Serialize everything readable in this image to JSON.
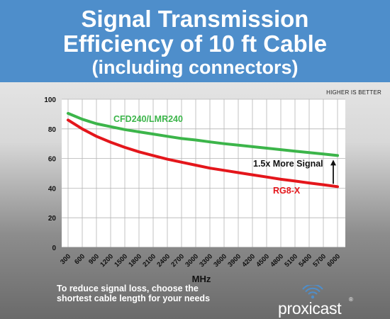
{
  "header": {
    "title_line1": "Signal Transmission",
    "title_line2": "Efficiency of 10 ft Cable",
    "subtitle": "(including connectors)"
  },
  "note": "HIGHER IS BETTER",
  "colors": {
    "header_bg": "#4e8ecb",
    "cfd240": "#3cb54a",
    "rg8x": "#e4161b",
    "grid": "#b4b4b4",
    "text": "#111111"
  },
  "chart_data": {
    "type": "line",
    "title": "Signal Transmission Efficiency of 10 ft Cable",
    "xlabel": "MHz",
    "ylabel": "",
    "x": [
      300,
      600,
      900,
      1200,
      1500,
      1800,
      2100,
      2400,
      2700,
      3000,
      3300,
      3600,
      3900,
      4200,
      4500,
      4800,
      5100,
      5400,
      5700,
      6000
    ],
    "ylim": [
      0,
      100
    ],
    "yticks": [
      0,
      20,
      40,
      60,
      80,
      100
    ],
    "grid": true,
    "series": [
      {
        "name": "CFD240/LMR240",
        "color": "#3cb54a",
        "values": [
          90.5,
          86.5,
          83.5,
          81.5,
          79.5,
          78,
          76.5,
          75,
          73.5,
          72.5,
          71.2,
          70,
          69,
          68,
          67,
          66,
          65,
          64,
          63,
          62
        ]
      },
      {
        "name": "RG8-X",
        "color": "#e4161b",
        "values": [
          86,
          80,
          75,
          71,
          67.5,
          64.5,
          62,
          59.5,
          57.5,
          55.5,
          53.5,
          52,
          50.5,
          49,
          47.5,
          46,
          44.8,
          43.5,
          42.3,
          41
        ]
      }
    ],
    "annotations": [
      {
        "text": "1.5x More Signal",
        "x": 6000,
        "from": 41,
        "to": 62
      }
    ]
  },
  "footer": {
    "line1": "To reduce signal loss, choose the",
    "line2": "shortest cable length for your needs"
  },
  "logo": {
    "word": "proxicast",
    "reg": "®"
  }
}
